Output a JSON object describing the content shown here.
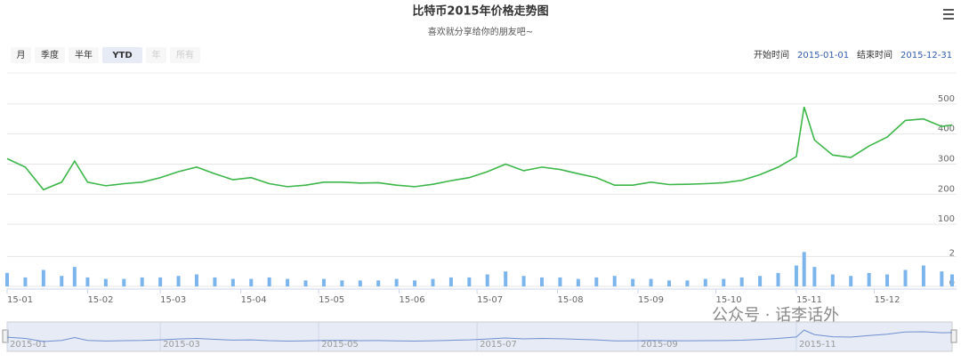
{
  "chart_data": {
    "type": "stock",
    "title": "比特币2015年价格走势图",
    "subtitle": "喜欢就分享给你的朋友吧~",
    "range_buttons": [
      "月",
      "季度",
      "半年",
      "YTD",
      "年",
      "所有"
    ],
    "active_button": "YTD",
    "disabled_buttons": [
      "年",
      "所有"
    ],
    "start_label": "开始时间",
    "start_value": "2015-01-01",
    "end_label": "结束时间",
    "end_value": "2015-12-31",
    "watermark": "公众号 · 话李话外",
    "xlim": [
      "2015-01-01",
      "2015-12-31"
    ],
    "xticks": [
      {
        "value": "2015-01-01",
        "label": "15-01"
      },
      {
        "value": "2015-02-01",
        "label": "15-02"
      },
      {
        "value": "2015-03-01",
        "label": "15-03"
      },
      {
        "value": "2015-04-01",
        "label": "15-04"
      },
      {
        "value": "2015-05-01",
        "label": "15-05"
      },
      {
        "value": "2015-06-01",
        "label": "15-06"
      },
      {
        "value": "2015-07-01",
        "label": "15-07"
      },
      {
        "value": "2015-08-01",
        "label": "15-08"
      },
      {
        "value": "2015-09-01",
        "label": "15-09"
      },
      {
        "value": "2015-10-01",
        "label": "15-10"
      },
      {
        "value": "2015-11-01",
        "label": "15-11"
      },
      {
        "value": "2015-12-01",
        "label": "15-12"
      }
    ],
    "navigator_ticks": [
      {
        "value": "2015-01-01",
        "label": "2015-01"
      },
      {
        "value": "2015-03-01",
        "label": "2015-03"
      },
      {
        "value": "2015-05-01",
        "label": "2015-05"
      },
      {
        "value": "2015-07-01",
        "label": "2015-07"
      },
      {
        "value": "2015-09-01",
        "label": "2015-09"
      },
      {
        "value": "2015-11-01",
        "label": "2015-11"
      }
    ],
    "ylim": [
      0,
      600
    ],
    "yticks": [
      100,
      200,
      300,
      400,
      500
    ],
    "y2lim": [
      0,
      2.5
    ],
    "y2ticks": [
      0,
      2
    ],
    "grid": true,
    "x": [
      "2015-01-01",
      "2015-01-08",
      "2015-01-15",
      "2015-01-22",
      "2015-01-27",
      "2015-02-01",
      "2015-02-08",
      "2015-02-15",
      "2015-02-22",
      "2015-03-01",
      "2015-03-08",
      "2015-03-15",
      "2015-03-22",
      "2015-03-29",
      "2015-04-05",
      "2015-04-12",
      "2015-04-19",
      "2015-04-26",
      "2015-05-03",
      "2015-05-10",
      "2015-05-17",
      "2015-05-24",
      "2015-05-31",
      "2015-06-07",
      "2015-06-14",
      "2015-06-21",
      "2015-06-28",
      "2015-07-05",
      "2015-07-12",
      "2015-07-19",
      "2015-07-26",
      "2015-08-02",
      "2015-08-09",
      "2015-08-16",
      "2015-08-23",
      "2015-08-30",
      "2015-09-06",
      "2015-09-13",
      "2015-09-20",
      "2015-09-27",
      "2015-10-04",
      "2015-10-11",
      "2015-10-18",
      "2015-10-25",
      "2015-11-01",
      "2015-11-04",
      "2015-11-08",
      "2015-11-15",
      "2015-11-22",
      "2015-11-29",
      "2015-12-06",
      "2015-12-13",
      "2015-12-20",
      "2015-12-27",
      "2015-12-31"
    ],
    "series": [
      {
        "name": "价格",
        "color": "#3cb649",
        "values": [
          318,
          290,
          215,
          240,
          310,
          240,
          228,
          235,
          240,
          255,
          275,
          290,
          268,
          248,
          255,
          235,
          225,
          230,
          240,
          240,
          237,
          238,
          230,
          225,
          233,
          245,
          255,
          275,
          300,
          278,
          290,
          282,
          268,
          255,
          230,
          230,
          240,
          232,
          233,
          235,
          238,
          246,
          265,
          290,
          325,
          490,
          380,
          330,
          322,
          360,
          390,
          445,
          450,
          425,
          430
        ]
      },
      {
        "name": "成交量",
        "color": "#7cb5ec",
        "axis": "y2",
        "values": [
          0.9,
          0.6,
          1.1,
          0.7,
          1.3,
          0.6,
          0.5,
          0.5,
          0.6,
          0.6,
          0.7,
          0.8,
          0.6,
          0.5,
          0.5,
          0.6,
          0.5,
          0.4,
          0.5,
          0.4,
          0.4,
          0.4,
          0.5,
          0.4,
          0.5,
          0.6,
          0.6,
          0.8,
          1.0,
          0.7,
          0.6,
          0.6,
          0.5,
          0.6,
          0.7,
          0.5,
          0.5,
          0.4,
          0.4,
          0.5,
          0.5,
          0.6,
          0.7,
          0.9,
          1.4,
          2.3,
          1.3,
          0.8,
          0.7,
          0.9,
          0.8,
          1.1,
          1.4,
          1.0,
          0.8
        ]
      }
    ]
  }
}
